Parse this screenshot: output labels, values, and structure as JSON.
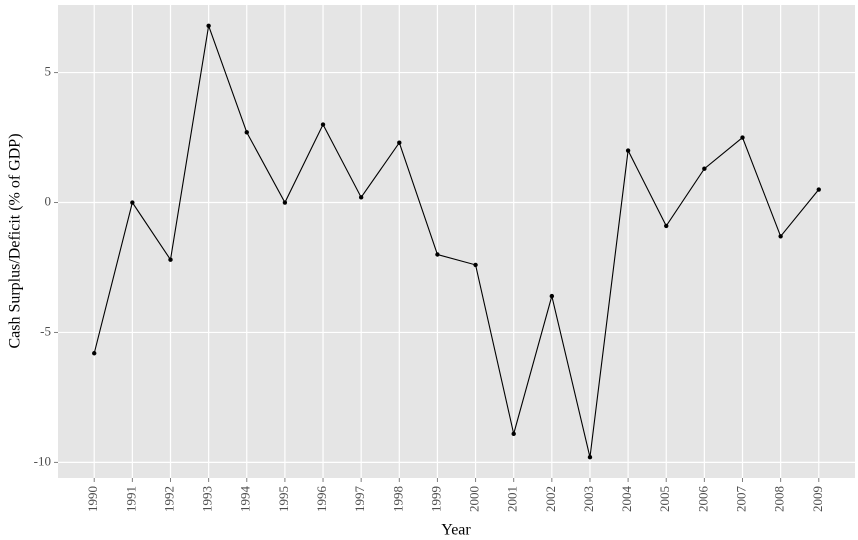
{
  "chart_data": {
    "type": "line",
    "x_label": "Year",
    "y_label": "Cash Surplus/Deficit (% of GDP)",
    "x": [
      1990,
      1991,
      1992,
      1993,
      1994,
      1995,
      1996,
      1997,
      1998,
      1999,
      2000,
      2001,
      2002,
      2003,
      2004,
      2005,
      2006,
      2007,
      2008,
      2009
    ],
    "values": [
      -5.8,
      0,
      -2.2,
      6.8,
      2.7,
      0,
      3.0,
      0.2,
      2.3,
      -2.0,
      -2.4,
      -8.9,
      -3.6,
      -9.8,
      2.0,
      -0.9,
      1.3,
      2.5,
      -1.3,
      0.5
    ],
    "color": "#000000",
    "xlim": [
      1989.05,
      2009.95
    ],
    "xticks": [
      1990,
      1991,
      1992,
      1993,
      1994,
      1995,
      1996,
      1997,
      1998,
      1999,
      2000,
      2001,
      2002,
      2003,
      2004,
      2005,
      2006,
      2007,
      2008,
      2009
    ],
    "ylim": [
      -10.6,
      7.6
    ],
    "yticks": [
      -10,
      -5,
      0,
      5
    ],
    "grid": true
  }
}
